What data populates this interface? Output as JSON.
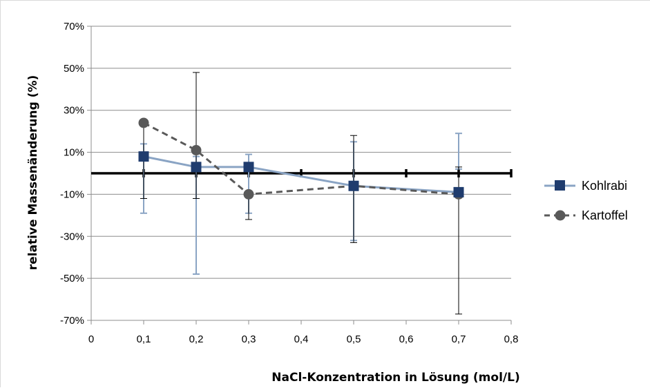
{
  "chart_data": {
    "type": "line",
    "title": "",
    "xlabel": "NaCl-Konzentration in Lösung (mol/L)",
    "ylabel": "relative Massenänderung (%)",
    "xlim": [
      0,
      0.8
    ],
    "ylim": [
      -70,
      70
    ],
    "x_ticks": [
      0,
      0.1,
      0.2,
      0.3,
      0.4,
      0.5,
      0.6,
      0.7,
      0.8
    ],
    "x_tick_labels": [
      "0",
      "0,1",
      "0,2",
      "0,3",
      "0,4",
      "0,5",
      "0,6",
      "0,7",
      "0,8"
    ],
    "y_ticks": [
      70,
      50,
      30,
      10,
      -10,
      -30,
      -50,
      -70
    ],
    "y_tick_labels": [
      "70%",
      "50%",
      "30%",
      "10%",
      "-10%",
      "-30%",
      "-50%",
      "-70%"
    ],
    "grid": "horizontal",
    "legend_position": "right",
    "zero_line": {
      "y": 0,
      "x_markers": [
        0.1,
        0.2,
        0.3,
        0.4,
        0.5,
        0.6,
        0.7,
        0.8
      ]
    },
    "series": [
      {
        "name": "Kohlrabi",
        "color": "#8aa4c4",
        "marker_color": "#1f3c6e",
        "marker": "square",
        "line_style": "solid",
        "points": [
          {
            "x": 0.1,
            "y": 8,
            "err_low": -19,
            "err_high": 14
          },
          {
            "x": 0.2,
            "y": 3,
            "err_low": -48,
            "err_high": 8
          },
          {
            "x": 0.3,
            "y": 3,
            "err_low": -19,
            "err_high": 9
          },
          {
            "x": 0.5,
            "y": -6,
            "err_low": -32,
            "err_high": 15
          },
          {
            "x": 0.7,
            "y": -9,
            "err_low": 2,
            "err_high": 19
          }
        ]
      },
      {
        "name": "Kartoffel",
        "color": "#595959",
        "marker_color": "#595959",
        "marker": "circle",
        "line_style": "dashed",
        "points": [
          {
            "x": 0.1,
            "y": 24,
            "err_low": -12,
            "err_high": 24
          },
          {
            "x": 0.2,
            "y": 11,
            "err_low": -12,
            "err_high": 48
          },
          {
            "x": 0.3,
            "y": -10,
            "err_low": -22,
            "err_high": -10
          },
          {
            "x": 0.5,
            "y": -6,
            "err_low": -33,
            "err_high": 18
          },
          {
            "x": 0.7,
            "y": -10,
            "err_low": -67,
            "err_high": 3
          }
        ]
      }
    ]
  }
}
